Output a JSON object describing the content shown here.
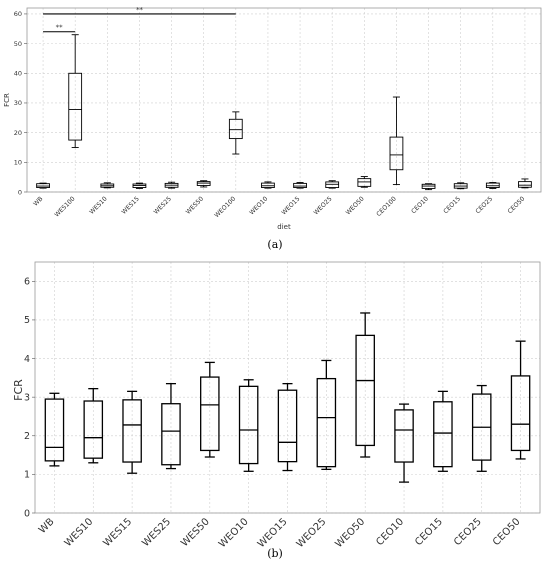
{
  "chart_data": [
    {
      "type": "boxplot",
      "panel_label": "(a)",
      "xlabel": "diet",
      "ylabel": "FCR",
      "ylim": [
        0,
        62
      ],
      "yticks": [
        0,
        10,
        20,
        30,
        40,
        50,
        60
      ],
      "grid": true,
      "categories": [
        "WB",
        "WES100",
        "WES10",
        "WES15",
        "WES25",
        "WES50",
        "WEO100",
        "WEO10",
        "WEO15",
        "WEO25",
        "WEO50",
        "CEO100",
        "CEO10",
        "CEO15",
        "CEO25",
        "CEO50"
      ],
      "boxes": [
        {
          "min": 1.3,
          "q1": 1.5,
          "median": 2.0,
          "q3": 2.8,
          "max": 3.0
        },
        {
          "min": 15.0,
          "q1": 17.5,
          "median": 27.8,
          "q3": 40.0,
          "max": 53.0
        },
        {
          "min": 1.4,
          "q1": 1.6,
          "median": 2.1,
          "q3": 2.7,
          "max": 3.1
        },
        {
          "min": 1.2,
          "q1": 1.5,
          "median": 2.2,
          "q3": 2.7,
          "max": 3.0
        },
        {
          "min": 1.3,
          "q1": 1.6,
          "median": 2.3,
          "q3": 2.9,
          "max": 3.3
        },
        {
          "min": 1.7,
          "q1": 2.2,
          "median": 3.0,
          "q3": 3.5,
          "max": 3.8
        },
        {
          "min": 12.8,
          "q1": 18.0,
          "median": 21.0,
          "q3": 24.5,
          "max": 27.0
        },
        {
          "min": 1.3,
          "q1": 1.5,
          "median": 2.1,
          "q3": 3.0,
          "max": 3.4
        },
        {
          "min": 1.3,
          "q1": 1.5,
          "median": 2.0,
          "q3": 2.9,
          "max": 3.2
        },
        {
          "min": 1.3,
          "q1": 1.5,
          "median": 2.6,
          "q3": 3.4,
          "max": 3.8
        },
        {
          "min": 1.6,
          "q1": 1.9,
          "median": 3.4,
          "q3": 4.5,
          "max": 5.2
        },
        {
          "min": 2.5,
          "q1": 7.5,
          "median": 12.5,
          "q3": 18.5,
          "max": 32.0
        },
        {
          "min": 0.8,
          "q1": 1.2,
          "median": 2.0,
          "q3": 2.6,
          "max": 2.8
        },
        {
          "min": 1.1,
          "q1": 1.3,
          "median": 2.0,
          "q3": 2.8,
          "max": 3.1
        },
        {
          "min": 1.2,
          "q1": 1.5,
          "median": 2.1,
          "q3": 3.0,
          "max": 3.2
        },
        {
          "min": 1.4,
          "q1": 1.6,
          "median": 2.3,
          "q3": 3.5,
          "max": 4.4
        }
      ],
      "annotations": [
        {
          "text": "**",
          "from": "WB",
          "to": "WES100",
          "y": 54
        },
        {
          "text": "**",
          "from": "WB",
          "to": "WEO100",
          "y": 60
        }
      ]
    },
    {
      "type": "boxplot",
      "panel_label": "(b)",
      "xlabel": "",
      "ylabel": "FCR",
      "ylim": [
        0,
        6.5
      ],
      "yticks": [
        0,
        1,
        2,
        3,
        4,
        5,
        6
      ],
      "grid": true,
      "categories": [
        "WB",
        "WES10",
        "WES15",
        "WES25",
        "WES50",
        "WEO10",
        "WEO15",
        "WEO25",
        "WEO50",
        "CEO10",
        "CEO15",
        "CEO25",
        "CEO50"
      ],
      "boxes": [
        {
          "min": 1.22,
          "q1": 1.35,
          "median": 1.7,
          "q3": 2.95,
          "max": 3.1
        },
        {
          "min": 1.3,
          "q1": 1.42,
          "median": 1.95,
          "q3": 2.9,
          "max": 3.22
        },
        {
          "min": 1.03,
          "q1": 1.32,
          "median": 2.28,
          "q3": 2.93,
          "max": 3.15
        },
        {
          "min": 1.15,
          "q1": 1.25,
          "median": 2.12,
          "q3": 2.83,
          "max": 3.35
        },
        {
          "min": 1.45,
          "q1": 1.62,
          "median": 2.8,
          "q3": 3.52,
          "max": 3.9
        },
        {
          "min": 1.08,
          "q1": 1.28,
          "median": 2.15,
          "q3": 3.28,
          "max": 3.45
        },
        {
          "min": 1.1,
          "q1": 1.33,
          "median": 1.83,
          "q3": 3.18,
          "max": 3.35
        },
        {
          "min": 1.13,
          "q1": 1.2,
          "median": 2.47,
          "q3": 3.48,
          "max": 3.95
        },
        {
          "min": 1.45,
          "q1": 1.75,
          "median": 3.43,
          "q3": 4.6,
          "max": 5.18
        },
        {
          "min": 0.8,
          "q1": 1.32,
          "median": 2.15,
          "q3": 2.67,
          "max": 2.82
        },
        {
          "min": 1.08,
          "q1": 1.2,
          "median": 2.07,
          "q3": 2.88,
          "max": 3.15
        },
        {
          "min": 1.08,
          "q1": 1.37,
          "median": 2.22,
          "q3": 3.08,
          "max": 3.3
        },
        {
          "min": 1.4,
          "q1": 1.62,
          "median": 2.3,
          "q3": 3.55,
          "max": 4.45
        }
      ]
    }
  ]
}
